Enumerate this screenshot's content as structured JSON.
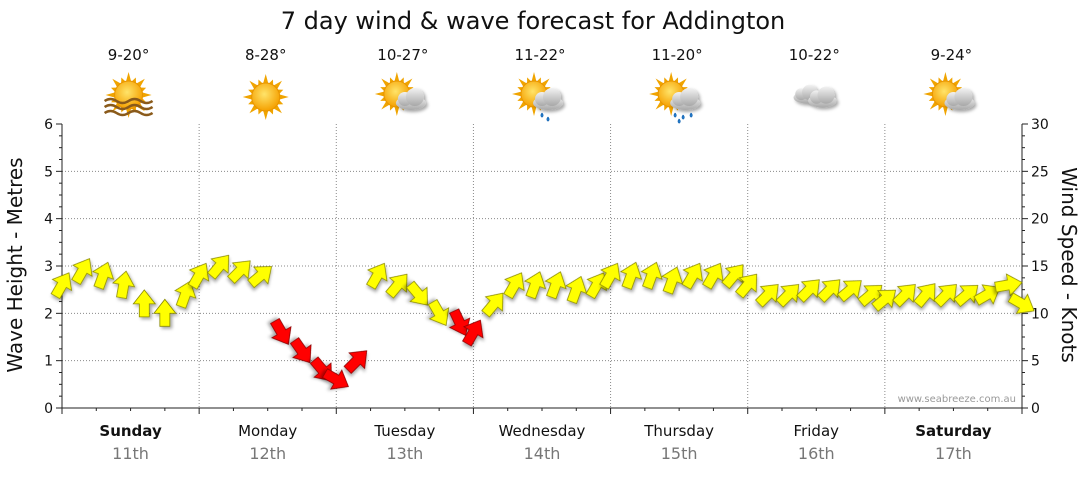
{
  "chart_data": {
    "type": "line",
    "title": "7 day wind & wave forecast for Addington",
    "ylabel_left": "Wave Height - Metres",
    "ylabel_right": "Wind Speed - Knots",
    "ylim_left": [
      0,
      6
    ],
    "ylim_right": [
      0,
      30
    ],
    "yticks_left": [
      "0",
      "1",
      "2",
      "3",
      "4",
      "5",
      "6"
    ],
    "yticks_right": [
      "0",
      "5",
      "10",
      "15",
      "20",
      "25",
      "30"
    ],
    "watermark": "www.seabreeze.com.au",
    "grid": true,
    "days": [
      {
        "day": "Sunday",
        "date": "11th",
        "bold": true,
        "temp": "9-20°",
        "icon": "sun-haze-icon"
      },
      {
        "day": "Monday",
        "date": "12th",
        "bold": false,
        "temp": "8-28°",
        "icon": "sun-icon"
      },
      {
        "day": "Tuesday",
        "date": "13th",
        "bold": false,
        "temp": "10-27°",
        "icon": "sun-cloud-icon"
      },
      {
        "day": "Wednesday",
        "date": "14th",
        "bold": false,
        "temp": "11-22°",
        "icon": "sun-cloud-showers-icon"
      },
      {
        "day": "Thursday",
        "date": "15th",
        "bold": false,
        "temp": "11-20°",
        "icon": "sun-cloud-rain-icon"
      },
      {
        "day": "Friday",
        "date": "16th",
        "bold": false,
        "temp": "10-22°",
        "icon": "cloud-icon"
      },
      {
        "day": "Saturday",
        "date": "17th",
        "bold": true,
        "temp": "9-24°",
        "icon": "sun-cloud-icon"
      }
    ],
    "series": [
      {
        "unit": "knots",
        "x_days": [
          0,
          0.15,
          0.3,
          0.45,
          0.6,
          0.75,
          0.9,
          1.0,
          1.15,
          1.3,
          1.45,
          1.6,
          1.75,
          1.9,
          2.0,
          2.15,
          2.3,
          2.45,
          2.6,
          2.75,
          2.9,
          3.0,
          3.15,
          3.3,
          3.45,
          3.6,
          3.75,
          3.9,
          4.0,
          4.15,
          4.3,
          4.45,
          4.6,
          4.75,
          4.9,
          5.0,
          5.15,
          5.3,
          5.45,
          5.6,
          5.75,
          5.9,
          6.0,
          6.15,
          6.3,
          6.45,
          6.6,
          6.75,
          6.9,
          7.0
        ],
        "speed": [
          13,
          14.5,
          14,
          13,
          11,
          10,
          12,
          14,
          15,
          14.5,
          14,
          8,
          6,
          4,
          3,
          5,
          14,
          13,
          12,
          10,
          9,
          8,
          11,
          13,
          13,
          13,
          12.5,
          13,
          14,
          14,
          14,
          13.5,
          14,
          14,
          14,
          13,
          12,
          12,
          12.5,
          12.5,
          12.5,
          12,
          11.5,
          12,
          12,
          12,
          12,
          12,
          13,
          11
        ],
        "direction_deg": [
          30,
          30,
          20,
          10,
          0,
          0,
          20,
          30,
          40,
          45,
          50,
          150,
          145,
          140,
          120,
          45,
          30,
          40,
          140,
          150,
          155,
          30,
          40,
          30,
          20,
          20,
          20,
          30,
          30,
          20,
          20,
          20,
          30,
          30,
          40,
          40,
          45,
          45,
          45,
          45,
          50,
          50,
          50,
          45,
          40,
          45,
          50,
          60,
          80,
          120
        ]
      }
    ]
  }
}
